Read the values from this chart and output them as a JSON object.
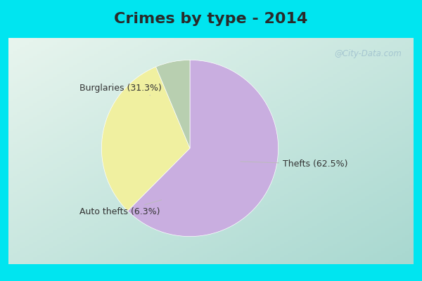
{
  "title": "Crimes by type - 2014",
  "slices": [
    {
      "label": "Thefts (62.5%)",
      "value": 62.5,
      "color": "#c9aee0"
    },
    {
      "label": "Burglaries (31.3%)",
      "value": 31.3,
      "color": "#f0f0a0"
    },
    {
      "label": "Auto thefts (6.3%)",
      "value": 6.3,
      "color": "#b8cfb0"
    }
  ],
  "background_cyan": "#00e5f0",
  "background_main_tl": "#e8f5ee",
  "background_main_br": "#b8dfd8",
  "title_fontsize": 16,
  "label_fontsize": 9,
  "watermark": "@City-Data.com",
  "title_color": "#2a2a2a",
  "label_color": "#333333",
  "top_bar_height": 0.135,
  "bottom_bar_height": 0.06,
  "side_bar_width": 0.02
}
